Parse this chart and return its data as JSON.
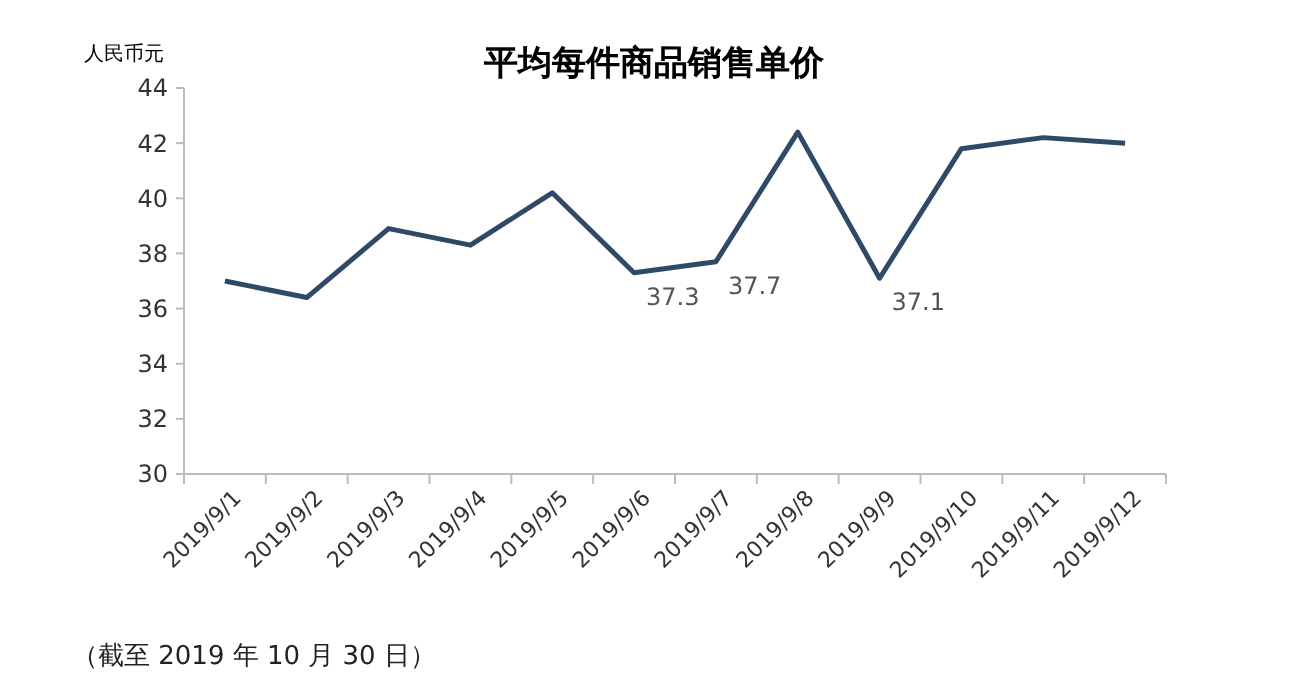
{
  "chart_data": {
    "type": "line",
    "title": "平均每件商品销售单价",
    "ylabel": "人民币元",
    "categories": [
      "2019/9/1",
      "2019/9/2",
      "2019/9/3",
      "2019/9/4",
      "2019/9/5",
      "2019/9/6",
      "2019/9/7",
      "2019/9/8",
      "2019/9/9",
      "2019/9/10",
      "2019/9/11",
      "2019/9/12"
    ],
    "series": [
      {
        "color": "#2e4a66",
        "values": [
          37.0,
          36.4,
          38.9,
          38.3,
          40.2,
          37.3,
          37.7,
          42.4,
          37.1,
          41.8,
          42.2,
          42.0
        ],
        "value_labels": [
          null,
          null,
          null,
          null,
          null,
          "37.3",
          "37.7",
          null,
          "37.1",
          null,
          null,
          null
        ]
      }
    ],
    "ylim": [
      30,
      44
    ],
    "yticks": [
      30,
      32,
      34,
      36,
      38,
      40,
      42,
      44
    ],
    "grid": false,
    "marker": "none",
    "line_style": "solid",
    "annotations": [
      "（截至 2019 年 10 月 30 日）"
    ]
  }
}
